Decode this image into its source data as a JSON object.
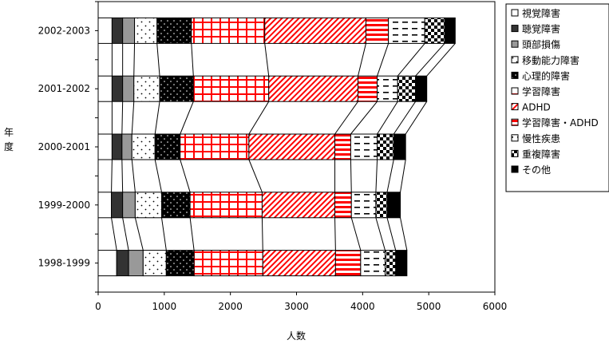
{
  "chart_data": {
    "type": "bar",
    "orientation": "horizontal",
    "stacked": true,
    "xlabel": "人数",
    "ylabel": "年度",
    "xlim": [
      0,
      6000
    ],
    "x_ticks": [
      "0",
      "1000",
      "2000",
      "3000",
      "4000",
      "5000",
      "6000"
    ],
    "categories": [
      "2002-2003",
      "2001-2002",
      "2000-2001",
      "1999-2000",
      "1998-1999"
    ],
    "series": [
      {
        "name": "視覚障害",
        "pattern": "white",
        "color": "#ffffff",
        "values": [
          210,
          210,
          210,
          200,
          280
        ]
      },
      {
        "name": "聴覚障害",
        "pattern": "dark",
        "color": "#333333",
        "values": [
          160,
          160,
          150,
          170,
          180
        ]
      },
      {
        "name": "頭部損傷",
        "pattern": "gray",
        "color": "#999999",
        "values": [
          180,
          170,
          150,
          190,
          220
        ]
      },
      {
        "name": "移動能力障害",
        "pattern": "dots",
        "color": "#ffffff",
        "values": [
          340,
          390,
          350,
          400,
          350
        ]
      },
      {
        "name": "心理的障害",
        "pattern": "dark-dots",
        "color": "#000000",
        "values": [
          520,
          510,
          380,
          430,
          420
        ]
      },
      {
        "name": "学習障害",
        "pattern": "red-grid",
        "color": "#ff0000",
        "values": [
          1110,
          1140,
          1040,
          1090,
          1040
        ]
      },
      {
        "name": "ADHD",
        "pattern": "red-diagonal",
        "color": "#ff0000",
        "values": [
          1530,
          1350,
          1300,
          1100,
          1100
        ]
      },
      {
        "name": "学習障害・ADHD",
        "pattern": "red-stripes",
        "color": "#ff0000",
        "values": [
          340,
          290,
          240,
          250,
          380
        ]
      },
      {
        "name": "慢性疾患",
        "pattern": "dash",
        "color": "#ffffff",
        "values": [
          550,
          310,
          400,
          370,
          370
        ]
      },
      {
        "name": "重複障害",
        "pattern": "checker",
        "color": "#000000",
        "values": [
          300,
          270,
          250,
          170,
          160
        ]
      },
      {
        "name": "その他",
        "pattern": "black",
        "color": "#000000",
        "values": [
          160,
          170,
          180,
          200,
          170
        ]
      }
    ],
    "legend_position": "right",
    "grid": false
  }
}
